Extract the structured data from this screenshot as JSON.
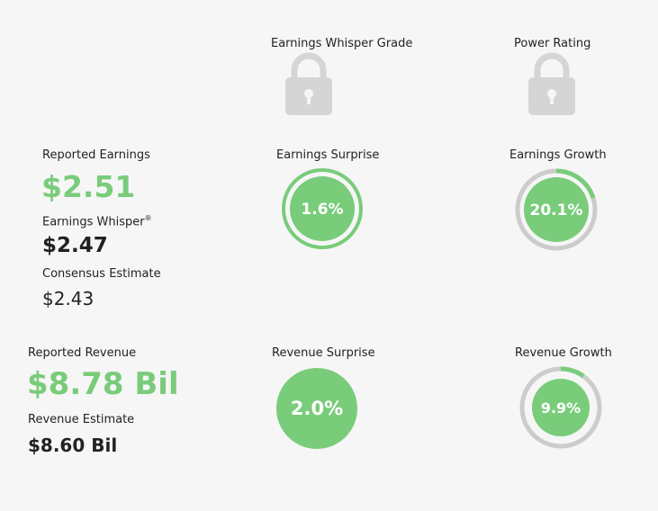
{
  "colors": {
    "accent": "#79cc7a",
    "ring_bg": "#cccccc",
    "lock": "#d5d5d5",
    "background": "#f6f6f6"
  },
  "top": {
    "whisper_grade_label": "Earnings Whisper Grade",
    "power_rating_label": "Power Rating",
    "whisper_grade_icon": "lock-icon",
    "power_rating_icon": "lock-icon"
  },
  "earnings": {
    "reported_label": "Reported Earnings",
    "reported_value": "$2.51",
    "whisper_label": "Earnings Whisper",
    "whisper_mark": "®",
    "whisper_value": "$2.47",
    "consensus_label": "Consensus Estimate",
    "consensus_value": "$2.43",
    "surprise_label": "Earnings Surprise",
    "surprise_value": "1.6%",
    "growth_label": "Earnings Growth",
    "growth_value": "20.1%",
    "growth_fraction": 0.201
  },
  "revenue": {
    "reported_label": "Reported Revenue",
    "reported_value": "$8.78 Bil",
    "estimate_label": "Revenue Estimate",
    "estimate_value": "$8.60 Bil",
    "surprise_label": "Revenue Surprise",
    "surprise_value": "2.0%",
    "growth_label": "Revenue Growth",
    "growth_value": "9.9%",
    "growth_fraction": 0.099
  }
}
